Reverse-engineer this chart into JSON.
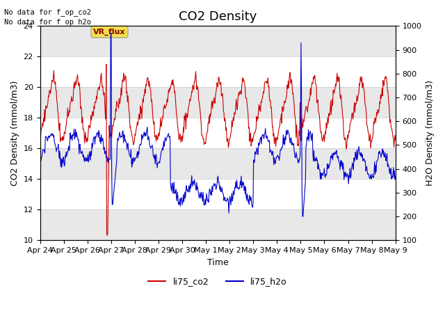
{
  "title": "CO2 Density",
  "xlabel": "Time",
  "ylabel_left": "CO2 Density (mmol/m3)",
  "ylabel_right": "H2O Density (mmol/m3)",
  "ylim_left": [
    10,
    24
  ],
  "ylim_right": [
    100,
    1000
  ],
  "yticks_left": [
    10,
    12,
    14,
    16,
    18,
    20,
    22,
    24
  ],
  "yticks_right": [
    100,
    200,
    300,
    400,
    500,
    600,
    700,
    800,
    900,
    1000
  ],
  "xtick_labels": [
    "Apr 24",
    "Apr 25",
    "Apr 26",
    "Apr 27",
    "Apr 28",
    "Apr 29",
    "Apr 30",
    "May 1",
    "May 2",
    "May 3",
    "May 4",
    "May 5",
    "May 6",
    "May 7",
    "May 8",
    "May 9"
  ],
  "no_data_text": [
    "No data for f_op_co2",
    "No data for f_op_h2o"
  ],
  "vr_flux_label": "VR_flux",
  "color_red": "#cc0000",
  "color_blue": "#0000cc",
  "legend_labels": [
    "li75_co2",
    "li75_h2o"
  ],
  "background_color": "#ffffff",
  "gray_band_color": "#e8e8e8",
  "title_fontsize": 13,
  "label_fontsize": 9,
  "tick_fontsize": 8,
  "n_days": 15,
  "pts_per_day": 48
}
